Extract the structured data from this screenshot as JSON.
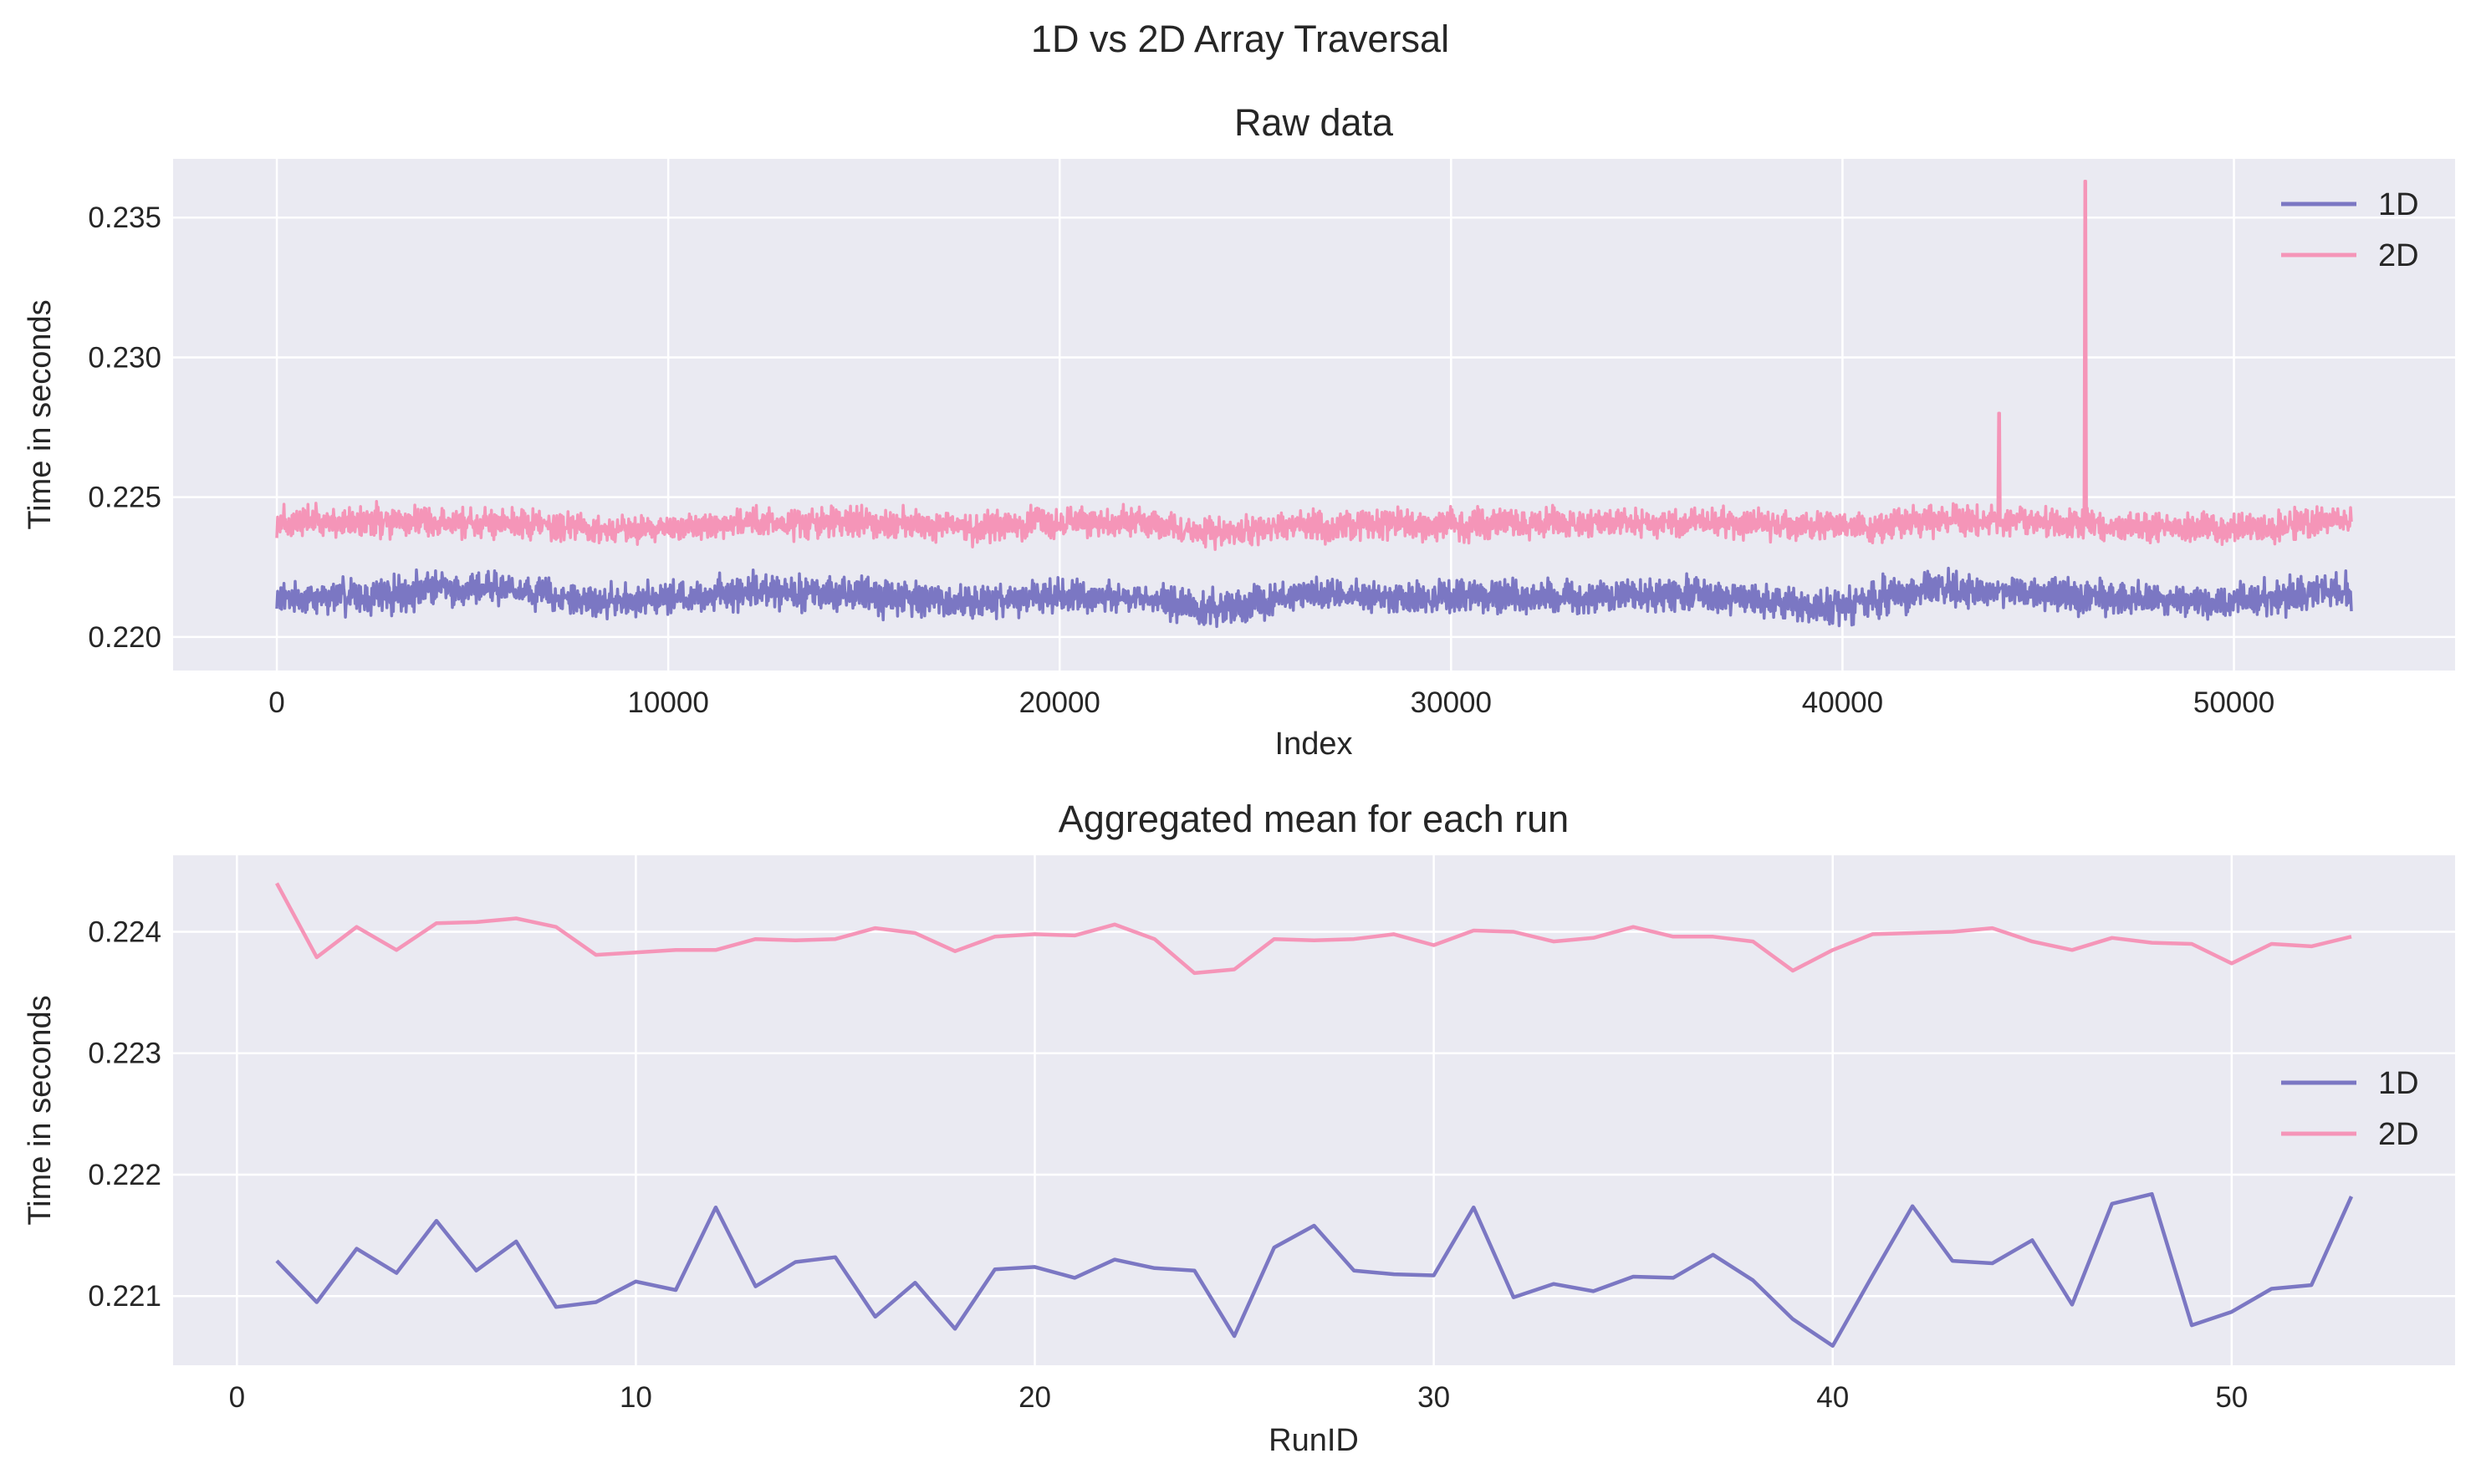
{
  "figure": {
    "suptitle": "1D vs 2D Array Traversal"
  },
  "colors": {
    "series_1d": "#7b77c3",
    "series_2d": "#f595b8",
    "plot_background": "#eaeaf2",
    "grid": "#ffffff",
    "text": "#262626"
  },
  "chart_data": [
    {
      "type": "line",
      "title": "Raw data",
      "xlabel": "Index",
      "ylabel": "Time in seconds",
      "xlim": [
        -2650,
        55650
      ],
      "ylim": [
        0.2188,
        0.2371
      ],
      "xticks": [
        0,
        10000,
        20000,
        30000,
        40000,
        50000
      ],
      "xtick_labels": [
        "0",
        "10000",
        "20000",
        "30000",
        "40000",
        "50000"
      ],
      "yticks": [
        0.22,
        0.225,
        0.23,
        0.235
      ],
      "ytick_labels": [
        "0.220",
        "0.225",
        "0.230",
        "0.235"
      ],
      "grid": true,
      "legend": "top-right",
      "x_range": [
        0,
        53000
      ],
      "spikes_2d": [
        {
          "x": 44000,
          "y": 0.228
        },
        {
          "x": 46200,
          "y": 0.2363
        }
      ],
      "series": [
        {
          "name": "1D",
          "band": [
            [
              0,
              0.2206,
              0.2222
            ],
            [
              2000,
              0.2203,
              0.2225
            ],
            [
              4000,
              0.2207,
              0.2228
            ],
            [
              6000,
              0.2208,
              0.2226
            ],
            [
              8000,
              0.2203,
              0.2222
            ],
            [
              10000,
              0.2205,
              0.2223
            ],
            [
              12000,
              0.2205,
              0.2229
            ],
            [
              14000,
              0.2206,
              0.2226
            ],
            [
              16000,
              0.2203,
              0.2225
            ],
            [
              18000,
              0.2203,
              0.2222
            ],
            [
              20000,
              0.2205,
              0.2225
            ],
            [
              22000,
              0.2206,
              0.2222
            ],
            [
              24000,
              0.2198,
              0.2221
            ],
            [
              26000,
              0.2206,
              0.2225
            ],
            [
              28000,
              0.2205,
              0.2223
            ],
            [
              30000,
              0.2204,
              0.2226
            ],
            [
              32000,
              0.2204,
              0.2224
            ],
            [
              34000,
              0.2205,
              0.2223
            ],
            [
              36000,
              0.2205,
              0.2226
            ],
            [
              38000,
              0.2203,
              0.2222
            ],
            [
              40000,
              0.2199,
              0.2222
            ],
            [
              42000,
              0.2207,
              0.2229
            ],
            [
              44000,
              0.2206,
              0.2226
            ],
            [
              46000,
              0.2203,
              0.2226
            ],
            [
              48000,
              0.2204,
              0.2223
            ],
            [
              50000,
              0.2203,
              0.2222
            ],
            [
              52000,
              0.2205,
              0.2228
            ],
            [
              53000,
              0.2206,
              0.2226
            ]
          ]
        },
        {
          "name": "2D",
          "band": [
            [
              0,
              0.2233,
              0.225
            ],
            [
              2000,
              0.2232,
              0.2252
            ],
            [
              4000,
              0.2232,
              0.2251
            ],
            [
              6000,
              0.2232,
              0.225
            ],
            [
              8000,
              0.223,
              0.2246
            ],
            [
              10000,
              0.2231,
              0.2246
            ],
            [
              12000,
              0.2232,
              0.225
            ],
            [
              14000,
              0.2232,
              0.225
            ],
            [
              16000,
              0.2232,
              0.225
            ],
            [
              18000,
              0.223,
              0.2248
            ],
            [
              20000,
              0.2232,
              0.225
            ],
            [
              22000,
              0.2233,
              0.225
            ],
            [
              24000,
              0.2228,
              0.2245
            ],
            [
              26000,
              0.223,
              0.2249
            ],
            [
              28000,
              0.2231,
              0.2249
            ],
            [
              30000,
              0.2231,
              0.225
            ],
            [
              32000,
              0.2232,
              0.225
            ],
            [
              34000,
              0.2232,
              0.2249
            ],
            [
              36000,
              0.2232,
              0.225
            ],
            [
              38000,
              0.2232,
              0.2249
            ],
            [
              40000,
              0.223,
              0.2248
            ],
            [
              42000,
              0.2232,
              0.225
            ],
            [
              44000,
              0.2233,
              0.2251
            ],
            [
              46000,
              0.2231,
              0.2249
            ],
            [
              48000,
              0.223,
              0.2248
            ],
            [
              50000,
              0.223,
              0.2248
            ],
            [
              52000,
              0.2231,
              0.225
            ],
            [
              53000,
              0.2233,
              0.2249
            ]
          ]
        }
      ]
    },
    {
      "type": "line",
      "title": "Aggregated mean for each run",
      "xlabel": "RunID",
      "ylabel": "Time in seconds",
      "xlim": [
        -1.6,
        55.6
      ],
      "ylim": [
        0.22043,
        0.22463
      ],
      "xticks": [
        0,
        10,
        20,
        30,
        40,
        50
      ],
      "xtick_labels": [
        "0",
        "10",
        "20",
        "30",
        "40",
        "50"
      ],
      "yticks": [
        0.221,
        0.222,
        0.223,
        0.224
      ],
      "ytick_labels": [
        "0.221",
        "0.222",
        "0.223",
        "0.224"
      ],
      "grid": true,
      "legend": "center-right",
      "x": [
        1,
        2,
        3,
        4,
        5,
        6,
        7,
        8,
        9,
        10,
        11,
        12,
        13,
        14,
        15,
        16,
        17,
        18,
        19,
        20,
        21,
        22,
        23,
        24,
        25,
        26,
        27,
        28,
        29,
        30,
        31,
        32,
        33,
        34,
        35,
        36,
        37,
        38,
        39,
        40,
        41,
        42,
        43,
        44,
        45,
        46,
        47,
        48,
        49,
        50,
        51,
        52,
        53
      ],
      "series": [
        {
          "name": "1D",
          "values": [
            0.22129,
            0.22095,
            0.22139,
            0.22119,
            0.22162,
            0.22121,
            0.22145,
            0.22091,
            0.22095,
            0.22112,
            0.22105,
            0.22173,
            0.22108,
            0.22128,
            0.22132,
            0.22083,
            0.22111,
            0.22073,
            0.22122,
            0.22124,
            0.22115,
            0.2213,
            0.22123,
            0.22121,
            0.22067,
            0.2214,
            0.22158,
            0.22121,
            0.22118,
            0.22117,
            0.22173,
            0.22099,
            0.2211,
            0.22104,
            0.22116,
            0.22115,
            0.22134,
            0.22113,
            0.22081,
            0.22059,
            0.22117,
            0.22174,
            0.22129,
            0.22127,
            0.22146,
            0.22093,
            0.22176,
            0.22184,
            0.22076,
            0.22087,
            0.22106,
            0.22109,
            0.22182
          ]
        },
        {
          "name": "2D",
          "values": [
            0.2244,
            0.22379,
            0.22404,
            0.22385,
            0.22407,
            0.22408,
            0.22411,
            0.22404,
            0.22381,
            0.22383,
            0.22385,
            0.22385,
            0.22394,
            0.22393,
            0.22394,
            0.22403,
            0.22399,
            0.22384,
            0.22396,
            0.22398,
            0.22397,
            0.22406,
            0.22394,
            0.22366,
            0.22369,
            0.22394,
            0.22393,
            0.22394,
            0.22398,
            0.22389,
            0.22401,
            0.224,
            0.22392,
            0.22395,
            0.22404,
            0.22396,
            0.22396,
            0.22392,
            0.22368,
            0.22385,
            0.22398,
            0.22399,
            0.224,
            0.22403,
            0.22392,
            0.22385,
            0.22395,
            0.22391,
            0.2239,
            0.22374,
            0.2239,
            0.22388,
            0.22396
          ]
        }
      ]
    }
  ]
}
